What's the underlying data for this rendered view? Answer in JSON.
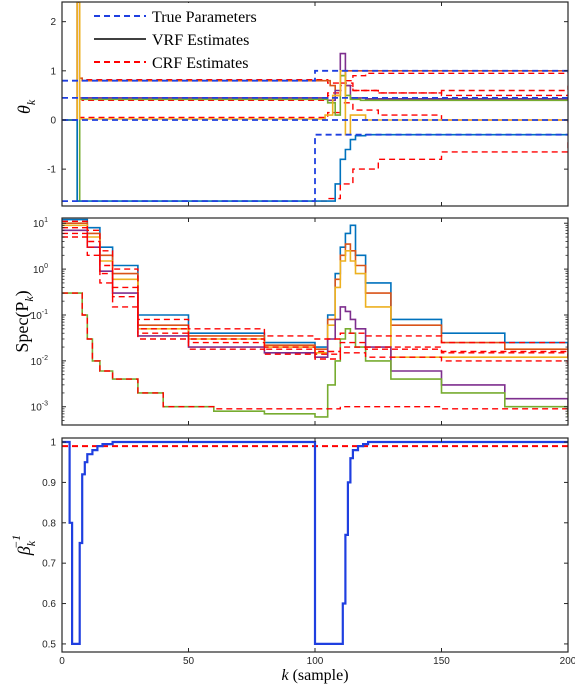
{
  "chart_data": [
    {
      "type": "line",
      "panel": "top",
      "ylabel_base": "θ",
      "ylabel_sub": "k",
      "xlim": [
        0,
        200
      ],
      "ylim": [
        -1.75,
        2.4
      ],
      "yticks": [
        -1,
        0,
        1,
        2
      ],
      "ytick_labels": [
        "-1",
        "0",
        "1",
        "2"
      ],
      "legend": {
        "placement": "top-left",
        "entries": [
          {
            "label": "True Parameters",
            "color": "#1f3fe0",
            "dash": "dashed"
          },
          {
            "label": "VRF Estimates",
            "color": "#000000",
            "dash": "solid"
          },
          {
            "label": "CRF Estimates",
            "color": "#ff0000",
            "dash": "dashed"
          }
        ]
      },
      "true_parameters": [
        {
          "x": [
            0,
            5,
            5,
            100,
            100,
            200
          ],
          "y": [
            0.8,
            0.8,
            0.8,
            0.8,
            1.0,
            1.0
          ]
        },
        {
          "x": [
            0,
            100,
            100,
            200
          ],
          "y": [
            0.45,
            0.45,
            0.45,
            0.45
          ]
        },
        {
          "x": [
            0,
            100,
            100,
            200
          ],
          "y": [
            0.0,
            0.0,
            0.0,
            0.0
          ]
        },
        {
          "x": [
            0,
            100,
            100,
            200
          ],
          "y": [
            -1.65,
            -1.65,
            -0.3,
            -0.3
          ]
        }
      ],
      "vrf_estimates": [
        {
          "name": "",
          "color": "#d95319",
          "x": [
            0,
            5,
            6,
            7,
            8,
            100,
            104,
            106,
            108,
            110,
            112,
            115,
            120,
            200
          ],
          "y": [
            0,
            0,
            2.4,
            0.85,
            0.8,
            0.8,
            0.8,
            0.7,
            0.5,
            0.9,
            1.0,
            1.0,
            1.0,
            1.0
          ]
        },
        {
          "name": "",
          "color": "#7e2f8e",
          "x": [
            0,
            5,
            6,
            7,
            8,
            100,
            105,
            108,
            110,
            112,
            114,
            120,
            200
          ],
          "y": [
            0,
            0,
            2.4,
            0.45,
            0.45,
            0.45,
            0.4,
            0.6,
            1.35,
            0.7,
            0.45,
            0.43,
            0.43
          ]
        },
        {
          "name": "",
          "color": "#77ac30",
          "x": [
            0,
            5,
            6,
            7,
            8,
            100,
            105,
            108,
            110,
            112,
            114,
            118,
            200
          ],
          "y": [
            0,
            0,
            -1.65,
            0.42,
            0.42,
            0.42,
            0.35,
            0.1,
            0.9,
            0.5,
            0.42,
            0.4,
            0.4
          ]
        },
        {
          "name": "",
          "color": "#edb120",
          "x": [
            0,
            5,
            6,
            7,
            8,
            100,
            104,
            107,
            110,
            112,
            114,
            120,
            200
          ],
          "y": [
            0,
            0,
            2.4,
            0.02,
            0.02,
            0.02,
            0.1,
            0.5,
            1.0,
            -0.3,
            0.1,
            0.0,
            0.0
          ]
        },
        {
          "name": "",
          "color": "#0072bd",
          "x": [
            0,
            5,
            6,
            7,
            8,
            100,
            105,
            108,
            110,
            112,
            114,
            116,
            120,
            200
          ],
          "y": [
            0,
            0,
            -1.65,
            -1.65,
            -1.65,
            -1.65,
            -1.65,
            -1.3,
            -0.8,
            -0.6,
            -0.4,
            -0.32,
            -0.3,
            -0.3
          ]
        }
      ],
      "crf_estimates": [
        {
          "x": [
            0,
            5,
            6,
            7,
            8,
            100,
            105,
            110,
            112,
            115,
            120,
            200
          ],
          "y": [
            0,
            0,
            2.4,
            0.85,
            0.82,
            0.82,
            0.75,
            0.6,
            0.8,
            0.9,
            0.95,
            0.98
          ]
        },
        {
          "x": [
            0,
            5,
            6,
            7,
            8,
            100,
            105,
            110,
            115,
            125,
            150,
            200
          ],
          "y": [
            0,
            0,
            2.4,
            0.45,
            0.45,
            0.45,
            0.55,
            0.7,
            0.6,
            0.55,
            0.5,
            0.52
          ]
        },
        {
          "x": [
            0,
            5,
            6,
            7,
            8,
            100,
            105,
            110,
            115,
            125,
            150,
            200
          ],
          "y": [
            0,
            0,
            -1.65,
            0.42,
            0.4,
            0.4,
            0.5,
            0.75,
            0.6,
            0.55,
            0.6,
            0.7
          ]
        },
        {
          "x": [
            0,
            5,
            6,
            7,
            8,
            100,
            105,
            110,
            115,
            125,
            150,
            200
          ],
          "y": [
            0,
            0,
            2.4,
            0.05,
            0.05,
            0.05,
            0.15,
            0.35,
            0.2,
            0.1,
            0.0,
            -0.05
          ]
        },
        {
          "x": [
            0,
            5,
            6,
            7,
            8,
            100,
            105,
            110,
            115,
            125,
            150,
            200
          ],
          "y": [
            0,
            0,
            -1.65,
            -1.65,
            -1.65,
            -1.65,
            -1.6,
            -1.3,
            -1.0,
            -0.8,
            -0.65,
            -0.45
          ]
        }
      ]
    },
    {
      "type": "line",
      "panel": "middle",
      "ylabel_base": "Spec(P",
      "ylabel_sub": "k",
      "ylabel_close": ")",
      "xlim": [
        0,
        200
      ],
      "yscale": "log",
      "ylim": [
        0.0004,
        13
      ],
      "yticks": [
        0.001,
        0.01,
        0.1,
        1,
        10
      ],
      "ytick_mantissas": [
        "10",
        "10",
        "10",
        "10",
        "10"
      ],
      "ytick_exponents": [
        "-3",
        "-2",
        "-1",
        "0",
        "1"
      ],
      "vrf_estimates": [
        {
          "name": "",
          "color": "#0072bd",
          "x": [
            0,
            5,
            10,
            15,
            20,
            30,
            50,
            80,
            100,
            105,
            108,
            110,
            112,
            114,
            116,
            120,
            130,
            150,
            175,
            200
          ],
          "y": [
            12,
            12,
            8,
            3,
            1.2,
            0.1,
            0.04,
            0.025,
            0.02,
            0.1,
            0.8,
            3,
            6,
            9,
            2,
            0.5,
            0.08,
            0.04,
            0.025,
            0.016
          ]
        },
        {
          "name": "",
          "color": "#d95319",
          "x": [
            0,
            5,
            10,
            15,
            20,
            30,
            50,
            80,
            100,
            105,
            108,
            110,
            112,
            114,
            116,
            120,
            130,
            150,
            175,
            200
          ],
          "y": [
            10,
            10,
            6,
            2,
            0.8,
            0.06,
            0.035,
            0.022,
            0.018,
            0.08,
            0.6,
            2,
            3.5,
            2.5,
            1.2,
            0.3,
            0.06,
            0.025,
            0.018,
            0.012
          ]
        },
        {
          "name": "",
          "color": "#edb120",
          "x": [
            0,
            5,
            10,
            15,
            20,
            30,
            50,
            80,
            100,
            105,
            108,
            110,
            112,
            114,
            116,
            120,
            130,
            150,
            175,
            200
          ],
          "y": [
            9,
            9,
            5,
            1.5,
            0.6,
            0.05,
            0.03,
            0.02,
            0.015,
            0.06,
            0.4,
            1.5,
            2.5,
            1.5,
            0.8,
            0.15,
            0.012,
            0.012,
            0.012,
            0.012
          ]
        },
        {
          "name": "",
          "color": "#7e2f8e",
          "x": [
            0,
            5,
            10,
            15,
            20,
            30,
            50,
            80,
            100,
            105,
            108,
            110,
            112,
            114,
            116,
            120,
            130,
            150,
            175,
            200
          ],
          "y": [
            7,
            7,
            3,
            0.9,
            0.3,
            0.035,
            0.02,
            0.015,
            0.012,
            0.03,
            0.08,
            0.15,
            0.12,
            0.08,
            0.05,
            0.02,
            0.006,
            0.003,
            0.0015,
            0.0008
          ]
        },
        {
          "name": "",
          "color": "#77ac30",
          "x": [
            0,
            5,
            8,
            10,
            12,
            15,
            20,
            30,
            40,
            60,
            80,
            100,
            105,
            108,
            110,
            112,
            114,
            116,
            120,
            130,
            150,
            175,
            200
          ],
          "y": [
            0.3,
            0.3,
            0.1,
            0.03,
            0.01,
            0.006,
            0.004,
            0.002,
            0.001,
            0.0008,
            0.0007,
            0.0006,
            0.003,
            0.01,
            0.03,
            0.05,
            0.04,
            0.02,
            0.01,
            0.004,
            0.002,
            0.001,
            0.0006
          ]
        }
      ],
      "crf_estimates": [
        {
          "x": [
            0,
            5,
            10,
            15,
            20,
            30,
            50,
            80,
            100,
            110,
            120,
            150,
            200
          ],
          "y": [
            11,
            11,
            7,
            2.5,
            1,
            0.08,
            0.05,
            0.035,
            0.03,
            0.04,
            0.035,
            0.025,
            0.015
          ]
        },
        {
          "x": [
            0,
            5,
            10,
            15,
            20,
            30,
            50,
            80,
            100,
            110,
            120,
            150,
            200
          ],
          "y": [
            8,
            8,
            4,
            1.2,
            0.4,
            0.05,
            0.03,
            0.02,
            0.016,
            0.025,
            0.02,
            0.016,
            0.012
          ]
        },
        {
          "x": [
            0,
            5,
            10,
            15,
            20,
            30,
            50,
            80,
            100,
            110,
            120,
            150,
            200
          ],
          "y": [
            6,
            6,
            3,
            0.8,
            0.25,
            0.04,
            0.025,
            0.018,
            0.014,
            0.02,
            0.018,
            0.015,
            0.011
          ]
        },
        {
          "x": [
            0,
            5,
            10,
            15,
            20,
            30,
            50,
            80,
            100,
            110,
            120,
            150,
            200
          ],
          "y": [
            5,
            5,
            2,
            0.5,
            0.15,
            0.03,
            0.018,
            0.014,
            0.011,
            0.015,
            0.012,
            0.01,
            0.008
          ]
        },
        {
          "x": [
            0,
            5,
            8,
            10,
            12,
            15,
            20,
            30,
            40,
            60,
            80,
            100,
            110,
            150,
            200
          ],
          "y": [
            0.3,
            0.3,
            0.1,
            0.03,
            0.01,
            0.006,
            0.004,
            0.002,
            0.001,
            0.0009,
            0.0009,
            0.0009,
            0.001,
            0.0009,
            0.0007
          ]
        }
      ]
    },
    {
      "type": "line",
      "panel": "bottom",
      "ylabel_base": "β",
      "ylabel_sub": "k",
      "ylabel_sup": "−1",
      "xlabel_var": "k",
      "xlabel_rest": " (sample)",
      "xlim": [
        0,
        200
      ],
      "ylim": [
        0.48,
        1.01
      ],
      "xticks": [
        0,
        50,
        100,
        150,
        200
      ],
      "xtick_labels": [
        "0",
        "50",
        "100",
        "150",
        "200"
      ],
      "yticks": [
        0.5,
        0.6,
        0.7,
        0.8,
        0.9,
        1
      ],
      "ytick_labels": [
        "0.5",
        "0.6",
        "0.7",
        "0.8",
        "0.9",
        "1"
      ],
      "vrf_forgetting": {
        "color": "#1f3fe0",
        "x": [
          0,
          3,
          3,
          4,
          4,
          5,
          5,
          7,
          7,
          8,
          8,
          9,
          9,
          10,
          10,
          12,
          12,
          14,
          14,
          16,
          16,
          20,
          20,
          100,
          100,
          110,
          110,
          111,
          111,
          112,
          112,
          113,
          113,
          114,
          114,
          115,
          115,
          117,
          117,
          119,
          119,
          121,
          121,
          200
        ],
        "y": [
          1,
          1,
          0.8,
          0.8,
          0.5,
          0.5,
          0.5,
          0.5,
          0.75,
          0.75,
          0.92,
          0.92,
          0.95,
          0.95,
          0.97,
          0.97,
          0.98,
          0.98,
          0.99,
          0.99,
          0.995,
          0.995,
          1,
          1,
          0.5,
          0.5,
          0.5,
          0.5,
          0.6,
          0.6,
          0.77,
          0.77,
          0.9,
          0.9,
          0.96,
          0.96,
          0.98,
          0.98,
          0.99,
          0.99,
          0.995,
          0.995,
          1,
          1
        ]
      },
      "crf_forgetting": {
        "color": "#ff0000",
        "x": [
          0,
          200
        ],
        "y": [
          0.99,
          0.99
        ]
      }
    }
  ]
}
